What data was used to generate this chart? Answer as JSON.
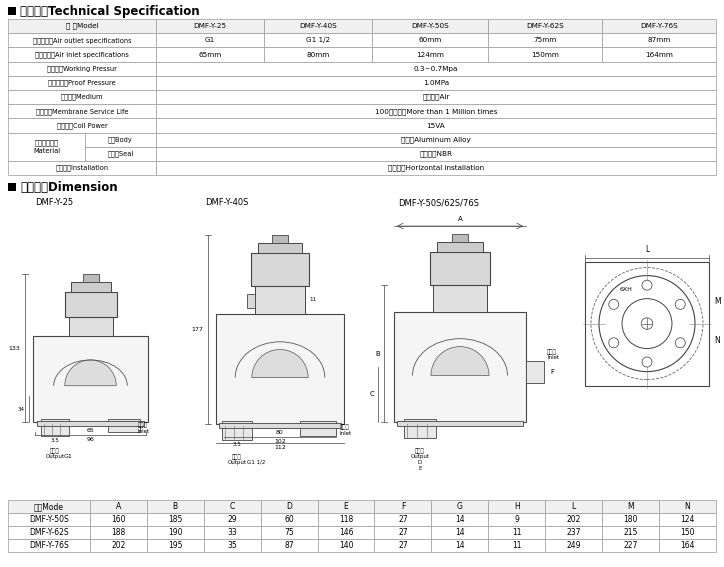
{
  "title1": "技术参数Technical Specification",
  "title2": "外型尺寸Dimension",
  "spec_col_labels": [
    "型 号Model",
    "DMF-Y-25",
    "DMF-Y-40S",
    "DMF-Y-50S",
    "DMF-Y-62S",
    "DMF-Y-76S"
  ],
  "spec_rows": [
    {
      "label": "出气口规格Air outlet specifications",
      "vals": [
        "G1",
        "G1 1/2",
        "60mm",
        "75mm",
        "87mm"
      ],
      "span": false
    },
    {
      "label": "进气口规格Air inlet specifications",
      "vals": [
        "65mm",
        "80mm",
        "124mm",
        "150mm",
        "164mm"
      ],
      "span": false
    },
    {
      "label": "工作压力Working Pressur",
      "vals": [
        "0.3~0.7Mpa"
      ],
      "span": true
    },
    {
      "label": "最大耐压力Proof Pressure",
      "vals": [
        "1.0MPa"
      ],
      "span": true
    },
    {
      "label": "使用介质Medium",
      "vals": [
        "清洁空气Air"
      ],
      "span": true
    },
    {
      "label": "膜片寿命Membrane Service Life",
      "vals": [
        "100万次以上More than 1 Million times"
      ],
      "span": true
    },
    {
      "label": "线圈功率Coil Power",
      "vals": [
        "15VA"
      ],
      "span": true
    }
  ],
  "material_rows": [
    {
      "sub": "本体Body",
      "val": "铝合金Aluminum Alloy"
    },
    {
      "sub": "密封圈Seal",
      "val": "丁腈橡胶NBR"
    }
  ],
  "material_label": "主要配件材质\nMaterial",
  "install_label": "安装方式Installation",
  "install_val": "水平安装Horizontal installation",
  "dim_headers": [
    "型号Mode",
    "A",
    "B",
    "C",
    "D",
    "E",
    "F",
    "G",
    "H",
    "L",
    "M",
    "N"
  ],
  "dim_rows": [
    [
      "DMF-Y-50S",
      "160",
      "185",
      "29",
      "60",
      "118",
      "27",
      "14",
      "9",
      "202",
      "180",
      "124"
    ],
    [
      "DMF-Y-62S",
      "188",
      "190",
      "33",
      "75",
      "146",
      "27",
      "14",
      "11",
      "237",
      "215",
      "150"
    ],
    [
      "DMF-Y-76S",
      "202",
      "195",
      "35",
      "87",
      "140",
      "27",
      "14",
      "11",
      "249",
      "227",
      "164"
    ]
  ],
  "diag_labels_25": "DMF-Y-25",
  "diag_labels_40": "DMF-Y-40S",
  "diag_labels_50": "DMF-Y-50S/62S/76S"
}
